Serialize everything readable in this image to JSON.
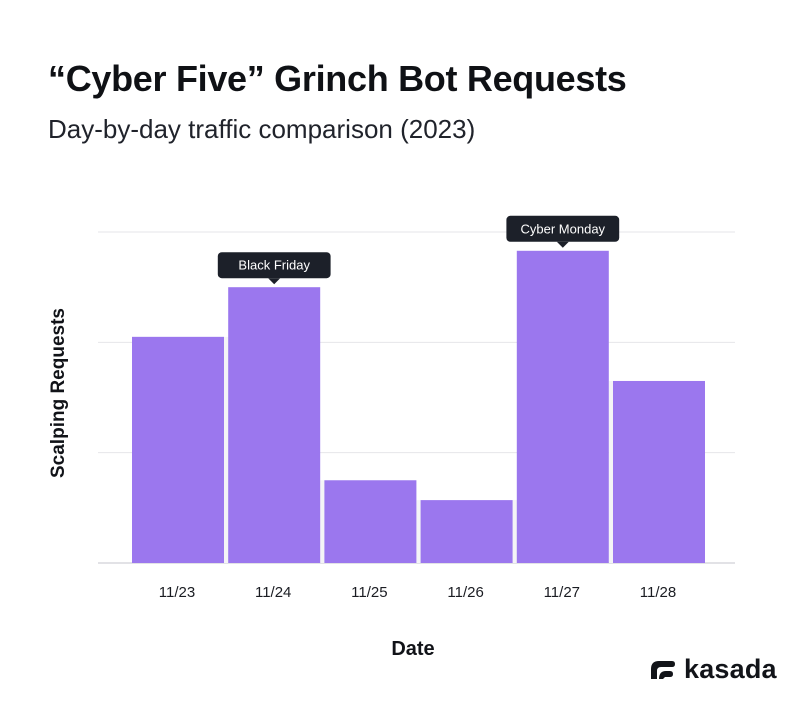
{
  "chart_data": {
    "type": "bar",
    "title": "“Cyber Five” Grinch Bot Requests",
    "subtitle": "Day-by-day traffic comparison (2023)",
    "xlabel": "Date",
    "ylabel": "Scalping Requests",
    "categories": [
      "11/23",
      "11/24",
      "11/25",
      "11/26",
      "11/27",
      "11/28"
    ],
    "values": [
      2.05,
      2.5,
      0.75,
      0.57,
      2.83,
      1.65
    ],
    "ylim": [
      0,
      3.1
    ],
    "grid": true,
    "bar_color": "#9b77ee",
    "step_color": "#f4f4f6",
    "annotations": [
      {
        "category": "11/24",
        "text": "Black Friday"
      },
      {
        "category": "11/27",
        "text": "Cyber Monday"
      }
    ]
  },
  "brand": {
    "name": "kasada",
    "logo_icon": "kasada-logo-icon"
  }
}
